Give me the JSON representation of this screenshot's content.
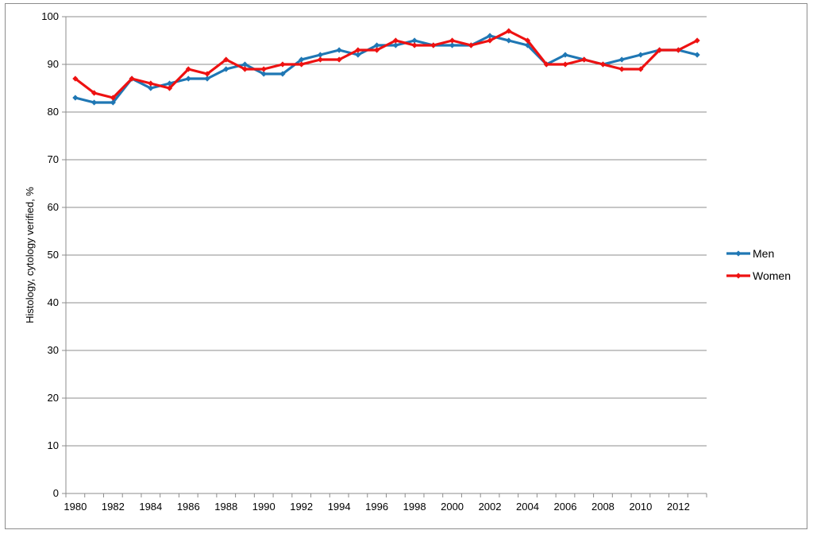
{
  "chart_data": {
    "type": "line",
    "title": "",
    "xlabel": "",
    "ylabel": "Histology, cytology verified, %",
    "ylim": [
      0,
      100
    ],
    "yticks": [
      0,
      10,
      20,
      30,
      40,
      50,
      60,
      70,
      80,
      90,
      100
    ],
    "xlim": [
      1980,
      2013
    ],
    "xticks": [
      1980,
      1982,
      1984,
      1986,
      1988,
      1990,
      1992,
      1994,
      1996,
      1998,
      2000,
      2002,
      2004,
      2006,
      2008,
      2010,
      2012
    ],
    "grid": "horizontal",
    "legend_position": "right",
    "x": [
      1980,
      1981,
      1982,
      1983,
      1984,
      1985,
      1986,
      1987,
      1988,
      1989,
      1990,
      1991,
      1992,
      1993,
      1994,
      1995,
      1996,
      1997,
      1998,
      1999,
      2000,
      2001,
      2002,
      2003,
      2004,
      2005,
      2006,
      2007,
      2008,
      2009,
      2010,
      2011,
      2012,
      2013
    ],
    "series": [
      {
        "name": "Men",
        "color": "#1f77b4",
        "values": [
          83,
          82,
          82,
          87,
          85,
          86,
          87,
          87,
          89,
          90,
          88,
          88,
          91,
          92,
          93,
          92,
          94,
          94,
          95,
          94,
          94,
          94,
          96,
          95,
          94,
          90,
          92,
          91,
          90,
          91,
          92,
          93,
          93,
          92
        ]
      },
      {
        "name": "Women",
        "color": "#ee1111",
        "values": [
          87,
          84,
          83,
          87,
          86,
          85,
          89,
          88,
          91,
          89,
          89,
          90,
          90,
          91,
          91,
          93,
          93,
          95,
          94,
          94,
          95,
          94,
          95,
          97,
          95,
          90,
          90,
          91,
          90,
          89,
          89,
          93,
          93,
          95
        ]
      }
    ]
  }
}
